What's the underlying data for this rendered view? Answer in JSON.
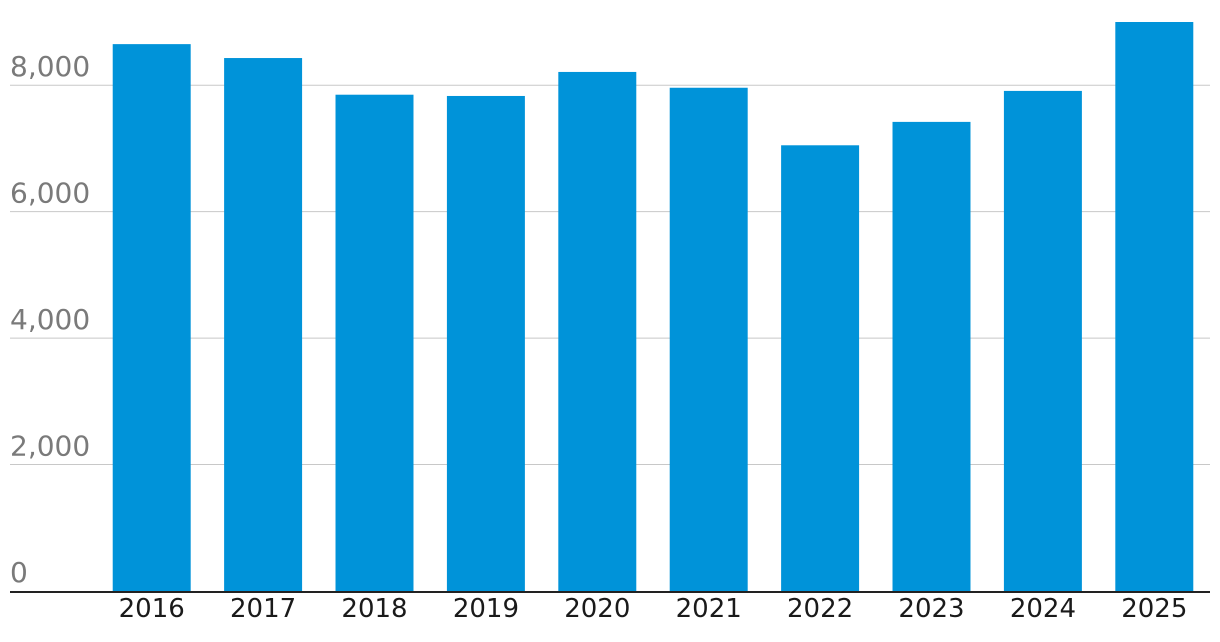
{
  "chart_data": {
    "type": "bar",
    "title": "",
    "xlabel": "",
    "ylabel": "",
    "categories": [
      "2016",
      "2017",
      "2018",
      "2019",
      "2020",
      "2021",
      "2022",
      "2023",
      "2024",
      "2025"
    ],
    "values": [
      8650,
      8430,
      7850,
      7830,
      8210,
      7960,
      7050,
      7420,
      7910,
      9000
    ],
    "ylim": [
      0,
      9000
    ],
    "yticks": [
      0,
      2000,
      4000,
      6000,
      8000
    ],
    "ytick_labels": [
      "0",
      "2,000",
      "4,000",
      "6,000",
      "8,000"
    ],
    "grid": true,
    "legend": "none",
    "colors": {
      "bar": "#0093d9",
      "grid": "#c8c8c8",
      "axis": "#222222",
      "y_tick_text": "#7a7a7a",
      "x_tick_text": "#1a1a1a"
    }
  }
}
